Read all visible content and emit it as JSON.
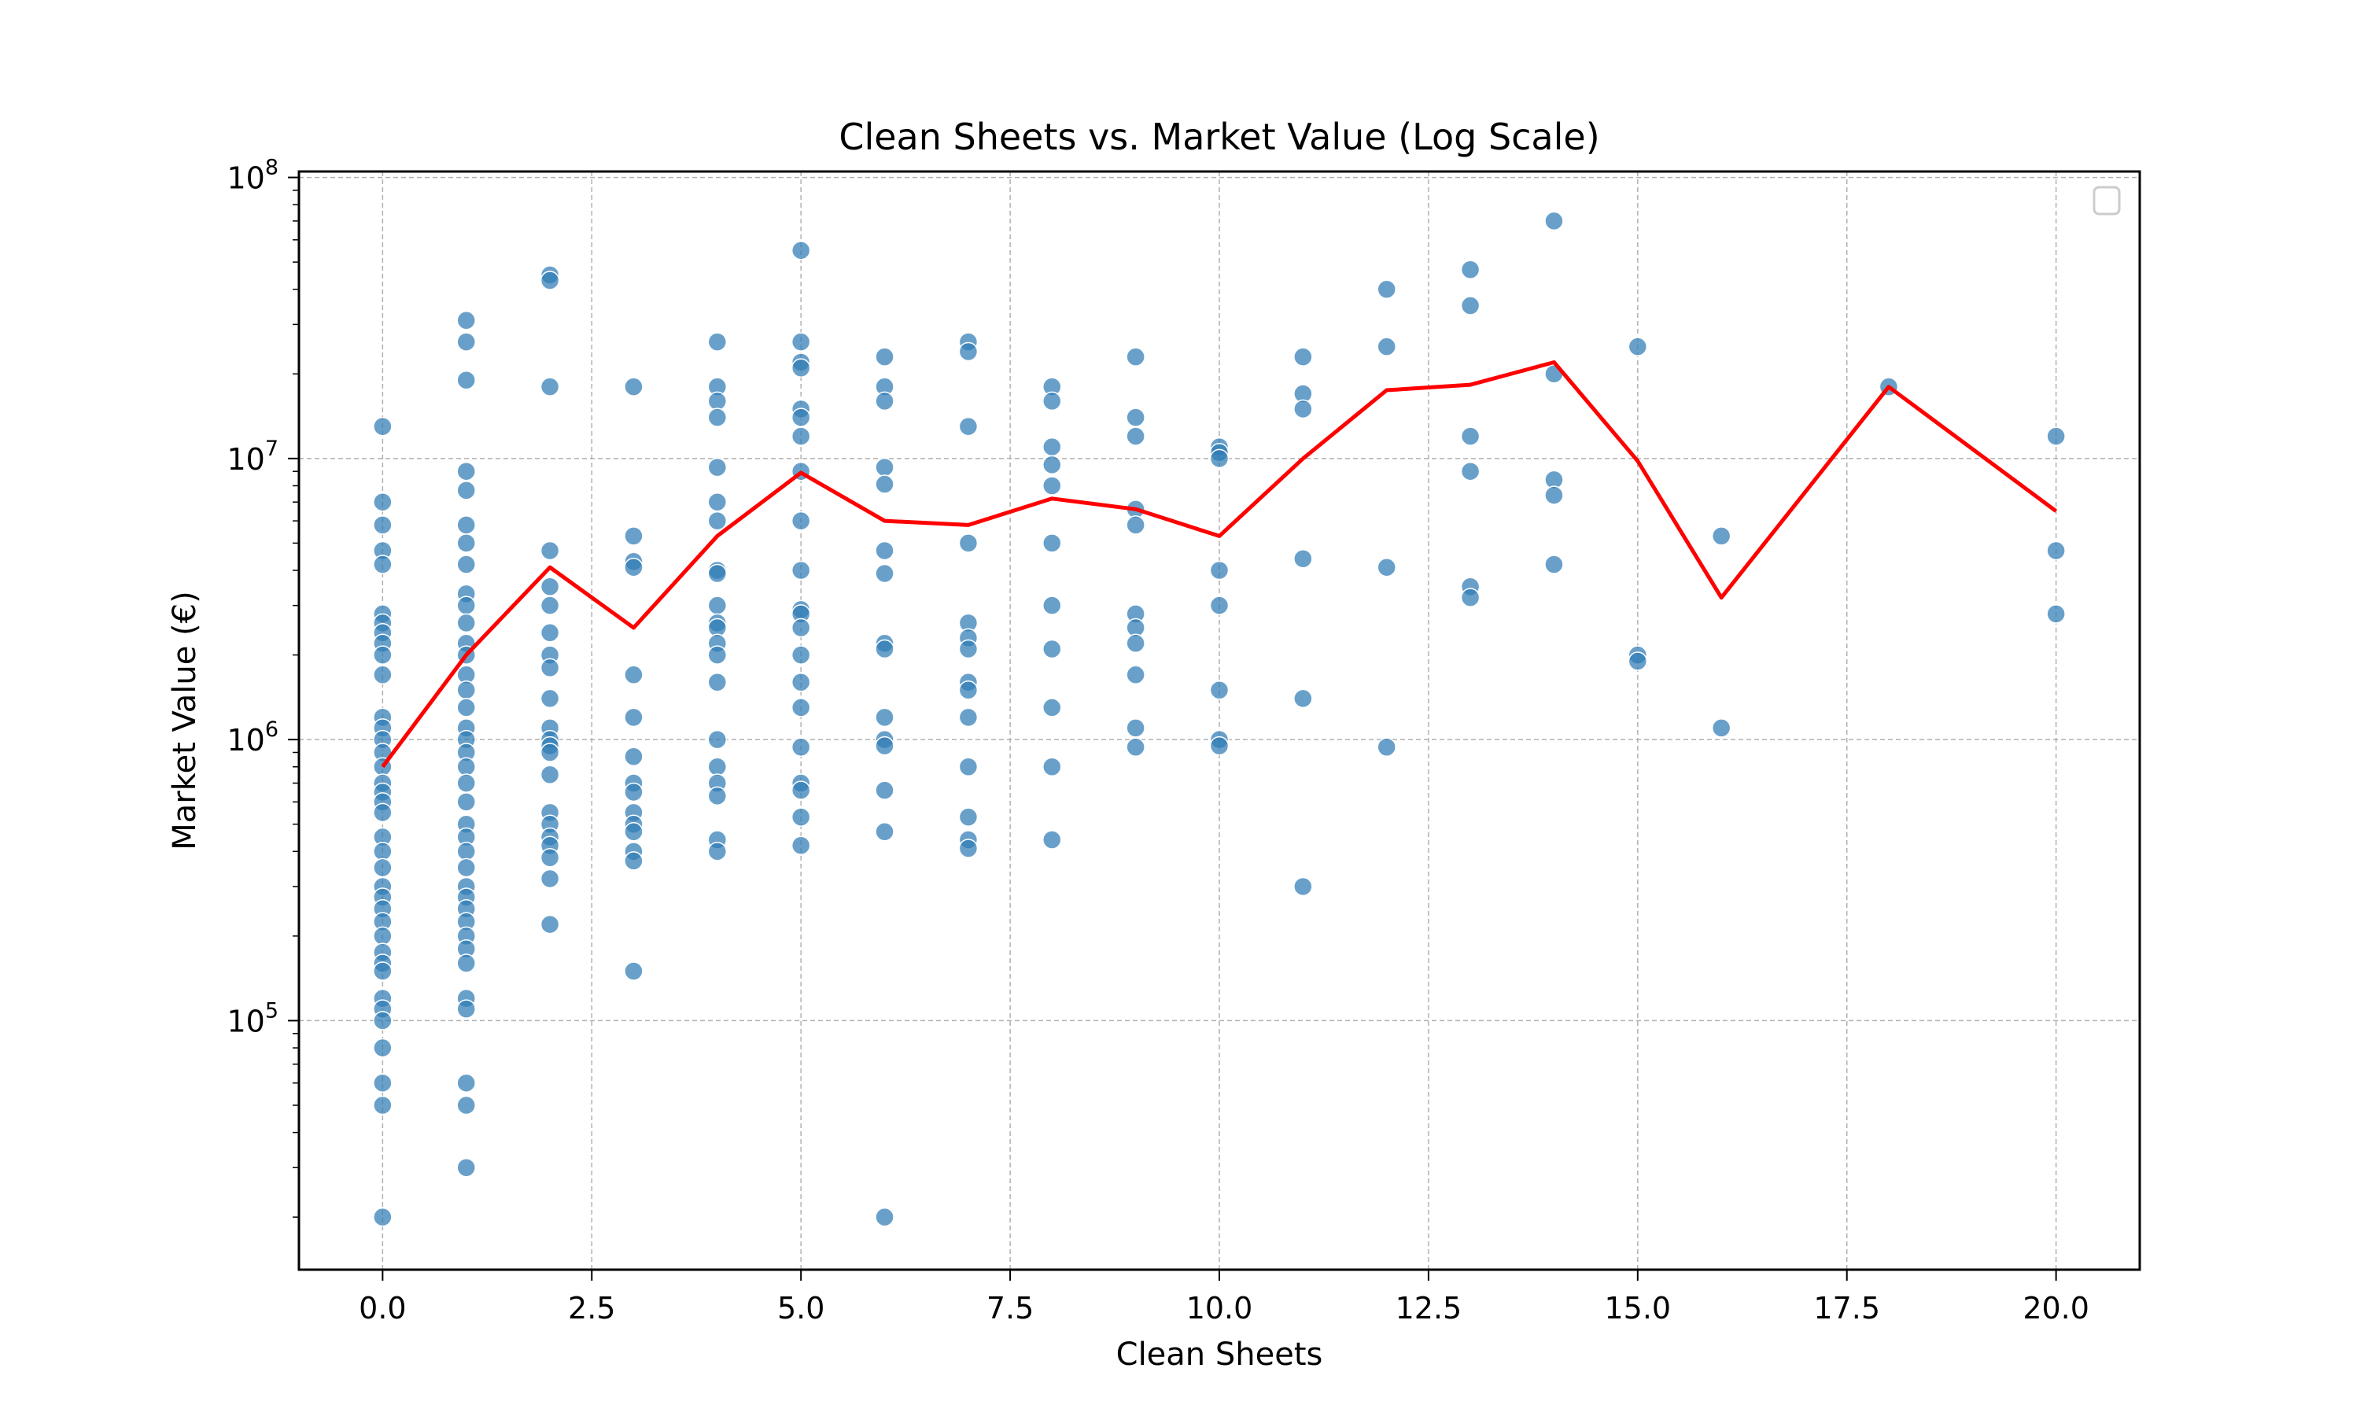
{
  "chart_data": {
    "type": "scatter",
    "title": "Clean Sheets vs. Market Value (Log Scale)",
    "xlabel": "Clean Sheets",
    "ylabel": "Market Value (€)",
    "xlim": [
      -1,
      21
    ],
    "ylim": [
      13000,
      105000000
    ],
    "yscale": "log",
    "grid": true,
    "legend": "top-right, empty",
    "x_ticks": [
      0.0,
      2.5,
      5.0,
      7.5,
      10.0,
      12.5,
      15.0,
      17.5,
      20.0
    ],
    "x_tick_labels": [
      "0.0",
      "2.5",
      "5.0",
      "7.5",
      "10.0",
      "12.5",
      "15.0",
      "17.5",
      "20.0"
    ],
    "y_ticks": [
      100000,
      1000000,
      10000000,
      100000000
    ],
    "y_tick_base": "10",
    "y_tick_exponents": [
      "5",
      "6",
      "7",
      "8"
    ],
    "colors": {
      "scatter": "#2f7bb6",
      "line": "#ff0000",
      "grid": "#b0b0b0"
    },
    "series": [
      {
        "kind": "scatter",
        "points": [
          [
            0,
            13000000
          ],
          [
            0,
            7000000
          ],
          [
            0,
            5800000
          ],
          [
            0,
            4700000
          ],
          [
            0,
            4200000
          ],
          [
            0,
            2800000
          ],
          [
            0,
            2600000
          ],
          [
            0,
            2400000
          ],
          [
            0,
            2200000
          ],
          [
            0,
            2000000
          ],
          [
            0,
            1700000
          ],
          [
            0,
            1200000
          ],
          [
            0,
            1100000
          ],
          [
            0,
            1000000
          ],
          [
            0,
            900000
          ],
          [
            0,
            800000
          ],
          [
            0,
            700000
          ],
          [
            0,
            650000
          ],
          [
            0,
            600000
          ],
          [
            0,
            550000
          ],
          [
            0,
            450000
          ],
          [
            0,
            400000
          ],
          [
            0,
            350000
          ],
          [
            0,
            300000
          ],
          [
            0,
            275000
          ],
          [
            0,
            250000
          ],
          [
            0,
            225000
          ],
          [
            0,
            200000
          ],
          [
            0,
            175000
          ],
          [
            0,
            160000
          ],
          [
            0,
            150000
          ],
          [
            0,
            120000
          ],
          [
            0,
            110000
          ],
          [
            0,
            100000
          ],
          [
            0,
            80000
          ],
          [
            0,
            60000
          ],
          [
            0,
            50000
          ],
          [
            0,
            20000
          ],
          [
            1,
            31000000
          ],
          [
            1,
            26000000
          ],
          [
            1,
            19000000
          ],
          [
            1,
            9000000
          ],
          [
            1,
            7700000
          ],
          [
            1,
            5800000
          ],
          [
            1,
            5000000
          ],
          [
            1,
            4200000
          ],
          [
            1,
            3300000
          ],
          [
            1,
            3000000
          ],
          [
            1,
            2600000
          ],
          [
            1,
            2200000
          ],
          [
            1,
            2000000
          ],
          [
            1,
            1700000
          ],
          [
            1,
            1500000
          ],
          [
            1,
            1300000
          ],
          [
            1,
            1100000
          ],
          [
            1,
            1000000
          ],
          [
            1,
            900000
          ],
          [
            1,
            800000
          ],
          [
            1,
            700000
          ],
          [
            1,
            600000
          ],
          [
            1,
            500000
          ],
          [
            1,
            450000
          ],
          [
            1,
            400000
          ],
          [
            1,
            350000
          ],
          [
            1,
            300000
          ],
          [
            1,
            275000
          ],
          [
            1,
            250000
          ],
          [
            1,
            225000
          ],
          [
            1,
            200000
          ],
          [
            1,
            180000
          ],
          [
            1,
            160000
          ],
          [
            1,
            120000
          ],
          [
            1,
            110000
          ],
          [
            1,
            60000
          ],
          [
            1,
            50000
          ],
          [
            1,
            30000
          ],
          [
            2,
            45000000
          ],
          [
            2,
            43000000
          ],
          [
            2,
            18000000
          ],
          [
            2,
            4700000
          ],
          [
            2,
            3500000
          ],
          [
            2,
            3000000
          ],
          [
            2,
            2400000
          ],
          [
            2,
            2000000
          ],
          [
            2,
            1800000
          ],
          [
            2,
            1400000
          ],
          [
            2,
            1100000
          ],
          [
            2,
            1000000
          ],
          [
            2,
            950000
          ],
          [
            2,
            900000
          ],
          [
            2,
            750000
          ],
          [
            2,
            550000
          ],
          [
            2,
            500000
          ],
          [
            2,
            450000
          ],
          [
            2,
            420000
          ],
          [
            2,
            380000
          ],
          [
            2,
            320000
          ],
          [
            2,
            220000
          ],
          [
            3,
            18000000
          ],
          [
            3,
            5300000
          ],
          [
            3,
            4300000
          ],
          [
            3,
            4100000
          ],
          [
            3,
            1700000
          ],
          [
            3,
            1200000
          ],
          [
            3,
            870000
          ],
          [
            3,
            700000
          ],
          [
            3,
            650000
          ],
          [
            3,
            550000
          ],
          [
            3,
            500000
          ],
          [
            3,
            470000
          ],
          [
            3,
            400000
          ],
          [
            3,
            370000
          ],
          [
            3,
            150000
          ],
          [
            4,
            26000000
          ],
          [
            4,
            18000000
          ],
          [
            4,
            16000000
          ],
          [
            4,
            14000000
          ],
          [
            4,
            9300000
          ],
          [
            4,
            7000000
          ],
          [
            4,
            6000000
          ],
          [
            4,
            4000000
          ],
          [
            4,
            3900000
          ],
          [
            4,
            3000000
          ],
          [
            4,
            2600000
          ],
          [
            4,
            2500000
          ],
          [
            4,
            2200000
          ],
          [
            4,
            2000000
          ],
          [
            4,
            1600000
          ],
          [
            4,
            1000000
          ],
          [
            4,
            800000
          ],
          [
            4,
            700000
          ],
          [
            4,
            630000
          ],
          [
            4,
            440000
          ],
          [
            4,
            400000
          ],
          [
            5,
            55000000
          ],
          [
            5,
            26000000
          ],
          [
            5,
            22000000
          ],
          [
            5,
            21000000
          ],
          [
            5,
            15000000
          ],
          [
            5,
            14000000
          ],
          [
            5,
            12000000
          ],
          [
            5,
            9000000
          ],
          [
            5,
            6000000
          ],
          [
            5,
            4000000
          ],
          [
            5,
            2900000
          ],
          [
            5,
            2800000
          ],
          [
            5,
            2500000
          ],
          [
            5,
            2000000
          ],
          [
            5,
            1600000
          ],
          [
            5,
            1300000
          ],
          [
            5,
            940000
          ],
          [
            5,
            700000
          ],
          [
            5,
            660000
          ],
          [
            5,
            530000
          ],
          [
            5,
            420000
          ],
          [
            6,
            23000000
          ],
          [
            6,
            18000000
          ],
          [
            6,
            16000000
          ],
          [
            6,
            9300000
          ],
          [
            6,
            8100000
          ],
          [
            6,
            4700000
          ],
          [
            6,
            3900000
          ],
          [
            6,
            2200000
          ],
          [
            6,
            2100000
          ],
          [
            6,
            1200000
          ],
          [
            6,
            1000000
          ],
          [
            6,
            950000
          ],
          [
            6,
            660000
          ],
          [
            6,
            470000
          ],
          [
            6,
            20000
          ],
          [
            7,
            26000000
          ],
          [
            7,
            24000000
          ],
          [
            7,
            13000000
          ],
          [
            7,
            5000000
          ],
          [
            7,
            2600000
          ],
          [
            7,
            2300000
          ],
          [
            7,
            2100000
          ],
          [
            7,
            1600000
          ],
          [
            7,
            1500000
          ],
          [
            7,
            1200000
          ],
          [
            7,
            800000
          ],
          [
            7,
            530000
          ],
          [
            7,
            440000
          ],
          [
            7,
            410000
          ],
          [
            8,
            18000000
          ],
          [
            8,
            16000000
          ],
          [
            8,
            11000000
          ],
          [
            8,
            9500000
          ],
          [
            8,
            8000000
          ],
          [
            8,
            5000000
          ],
          [
            8,
            3000000
          ],
          [
            8,
            2100000
          ],
          [
            8,
            1300000
          ],
          [
            8,
            800000
          ],
          [
            8,
            440000
          ],
          [
            9,
            23000000
          ],
          [
            9,
            14000000
          ],
          [
            9,
            12000000
          ],
          [
            9,
            6600000
          ],
          [
            9,
            5800000
          ],
          [
            9,
            2800000
          ],
          [
            9,
            2500000
          ],
          [
            9,
            2200000
          ],
          [
            9,
            1700000
          ],
          [
            9,
            1100000
          ],
          [
            9,
            940000
          ],
          [
            10,
            11000000
          ],
          [
            10,
            10500000
          ],
          [
            10,
            10000000
          ],
          [
            10,
            4000000
          ],
          [
            10,
            3000000
          ],
          [
            10,
            1500000
          ],
          [
            10,
            1000000
          ],
          [
            10,
            950000
          ],
          [
            11,
            23000000
          ],
          [
            11,
            17000000
          ],
          [
            11,
            15000000
          ],
          [
            11,
            4400000
          ],
          [
            11,
            1400000
          ],
          [
            11,
            300000
          ],
          [
            12,
            40000000
          ],
          [
            12,
            25000000
          ],
          [
            12,
            4100000
          ],
          [
            12,
            940000
          ],
          [
            13,
            47000000
          ],
          [
            13,
            35000000
          ],
          [
            13,
            12000000
          ],
          [
            13,
            9000000
          ],
          [
            13,
            3500000
          ],
          [
            13,
            3200000
          ],
          [
            14,
            70000000
          ],
          [
            14,
            20000000
          ],
          [
            14,
            8400000
          ],
          [
            14,
            7400000
          ],
          [
            14,
            4200000
          ],
          [
            15,
            25000000
          ],
          [
            15,
            2000000
          ],
          [
            15,
            1900000
          ],
          [
            16,
            5300000
          ],
          [
            16,
            1100000
          ],
          [
            18,
            18000000
          ],
          [
            20,
            12000000
          ],
          [
            20,
            4700000
          ],
          [
            20,
            2800000
          ]
        ]
      },
      {
        "kind": "line",
        "x": [
          0,
          1,
          2,
          3,
          4,
          5,
          6,
          7,
          8,
          9,
          10,
          11,
          12,
          13,
          14,
          15,
          16,
          18,
          20
        ],
        "y": [
          800000,
          2000000,
          4100000,
          2500000,
          5300000,
          8900000,
          6000000,
          5800000,
          7200000,
          6600000,
          5300000,
          10000000,
          17500000,
          18300000,
          22000000,
          9800000,
          3200000,
          18000000,
          6500000
        ]
      }
    ]
  }
}
